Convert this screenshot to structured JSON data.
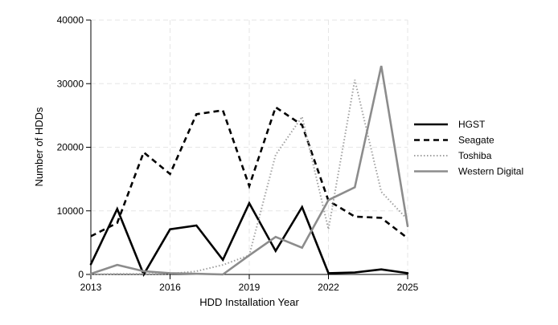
{
  "chart_data": {
    "type": "line",
    "title": "",
    "xlabel": "HDD Installation Year",
    "ylabel": "Number of HDDs",
    "xlim": [
      2013,
      2025
    ],
    "ylim": [
      0,
      40000
    ],
    "xticks": [
      2013,
      2016,
      2019,
      2022,
      2025
    ],
    "yticks": [
      0,
      10000,
      20000,
      30000,
      40000
    ],
    "x": [
      2013,
      2014,
      2015,
      2016,
      2017,
      2018,
      2019,
      2020,
      2021,
      2022,
      2023,
      2024,
      2025
    ],
    "grid": true,
    "legend_position": "right",
    "series": [
      {
        "name": "HGST",
        "color": "#000000",
        "style": "solid",
        "values": [
          1600,
          10300,
          0,
          7100,
          7700,
          2300,
          11200,
          3700,
          10600,
          200,
          300,
          800,
          200
        ]
      },
      {
        "name": "Seagate",
        "color": "#000000",
        "style": "dashed",
        "values": [
          6000,
          8100,
          19200,
          15800,
          25200,
          25800,
          13900,
          26300,
          23500,
          11600,
          9100,
          8900,
          5700
        ]
      },
      {
        "name": "Toshiba",
        "color": "#a0a0a0",
        "style": "dotted",
        "values": [
          0,
          100,
          100,
          100,
          500,
          1500,
          3000,
          18800,
          24800,
          7100,
          30600,
          13000,
          8600
        ]
      },
      {
        "name": "Western Digital",
        "color": "#8c8c8c",
        "style": "solid",
        "values": [
          100,
          1500,
          500,
          200,
          100,
          0,
          3000,
          5900,
          4200,
          11700,
          13700,
          32800,
          7600
        ]
      }
    ]
  }
}
